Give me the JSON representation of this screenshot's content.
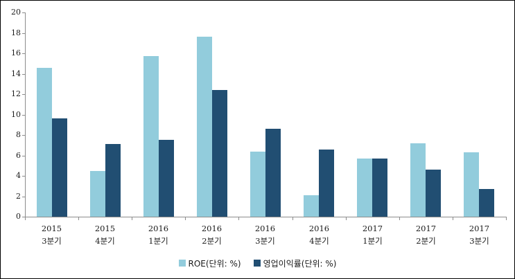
{
  "chart_data": {
    "type": "bar",
    "title": "",
    "xlabel": "",
    "ylabel": "",
    "ylim": [
      0,
      20
    ],
    "yticks": [
      0,
      2,
      4,
      6,
      8,
      10,
      12,
      14,
      16,
      18,
      20
    ],
    "grid": false,
    "legend_position": "bottom",
    "categories": [
      {
        "line1": "2015",
        "line2": "3분기"
      },
      {
        "line1": "2015",
        "line2": "4분기"
      },
      {
        "line1": "2016",
        "line2": "1분기"
      },
      {
        "line1": "2016",
        "line2": "2분기"
      },
      {
        "line1": "2016",
        "line2": "3분기"
      },
      {
        "line1": "2016",
        "line2": "4분기"
      },
      {
        "line1": "2017",
        "line2": "1분기"
      },
      {
        "line1": "2017",
        "line2": "2분기"
      },
      {
        "line1": "2017",
        "line2": "3분기"
      }
    ],
    "series": [
      {
        "name": "ROE(단위: %)",
        "color": "#92CCDC",
        "values": [
          14.6,
          4.5,
          15.7,
          17.6,
          6.4,
          2.1,
          5.7,
          7.2,
          6.3
        ]
      },
      {
        "name": "영업이익률(단위: %)",
        "color": "#214E72",
        "values": [
          9.6,
          7.1,
          7.5,
          12.4,
          8.6,
          6.6,
          5.7,
          4.6,
          2.7
        ]
      }
    ]
  },
  "colors": {
    "axis": "#8C8C8C",
    "text": "#1A1A1A",
    "background": "#FFFFFF",
    "border": "#000000",
    "series_light": "#92CCDC",
    "series_dark": "#214E72"
  }
}
